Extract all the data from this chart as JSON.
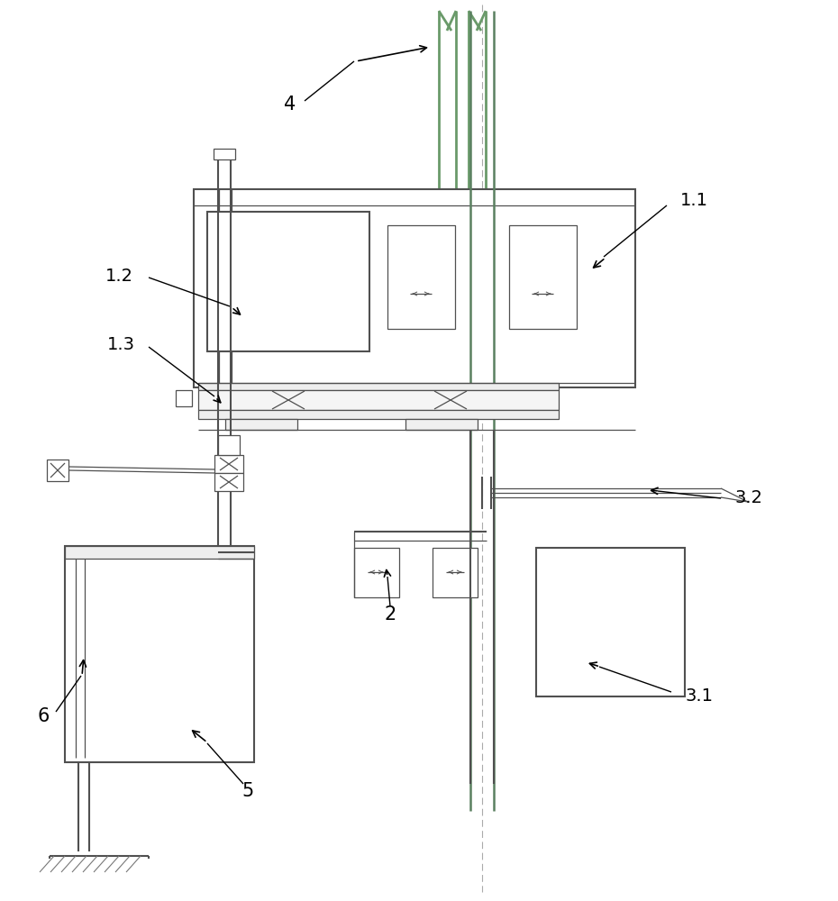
{
  "bg_color": "#ffffff",
  "lc": "#505050",
  "lw": 1.5,
  "tlw": 0.9,
  "gc": "#6a9a6a",
  "clc": "#aaaaaa"
}
